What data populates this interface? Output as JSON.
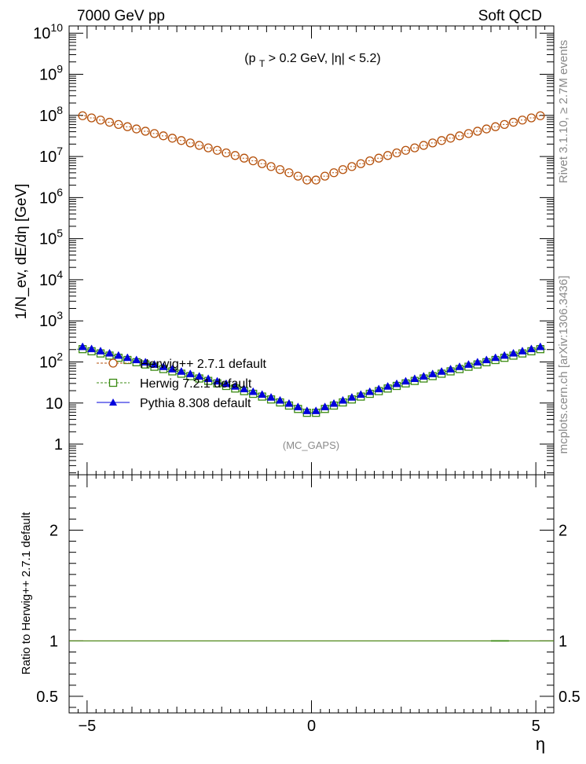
{
  "header": {
    "left": "7000 GeV pp",
    "right": "Soft QCD"
  },
  "cut_label": "(p_T > 0.2 GeV, |η| < 5.2)",
  "analysis_tag": "(MC_GAPS)",
  "side_labels": {
    "rivet": "Rivet 3.1.10, ≥ 2.7M events",
    "mcplots": "mcplots.cern.ch [arXiv:1306.3436]"
  },
  "colors": {
    "herwigpp": "#b5510c",
    "herwig7": "#3a8a12",
    "pythia": "#0000dd",
    "ratio_line": "#3a8a12"
  },
  "chart_data": [
    {
      "type": "scatter",
      "title": "",
      "xlabel": "η",
      "ylabel": "1/N_ev, dE/dη [GeV]",
      "yscale": "log",
      "xlim": [
        -5.4,
        5.4
      ],
      "ylim": [
        0.18,
        15000000000
      ],
      "x_ticks": [
        "−5",
        "0",
        "5"
      ],
      "y_ticks": [
        "1",
        "10",
        "10^2",
        "10^3",
        "10^4",
        "10^5",
        "10^6",
        "10^7",
        "10^8",
        "10^9",
        "10^10"
      ],
      "legend_position": "middle-left",
      "series": [
        {
          "name": "Herwig++ 2.7.1 default",
          "marker": "open-circle",
          "ends": 98000000,
          "center": 2300000
        },
        {
          "name": "Herwig 7.2.1 default",
          "marker": "open-square",
          "ends": 205,
          "center": 5
        },
        {
          "name": "Pythia 8.308 default",
          "marker": "filled-triangle",
          "ends": 235,
          "center": 5.6
        }
      ],
      "x": [
        -5.1,
        -4.9,
        -4.7,
        -4.5,
        -4.3,
        -4.1,
        -3.9,
        -3.7,
        -3.5,
        -3.3,
        -3.1,
        -2.9,
        -2.7,
        -2.5,
        -2.3,
        -2.1,
        -1.9,
        -1.7,
        -1.5,
        -1.3,
        -1.1,
        -0.9,
        -0.7,
        -0.5,
        -0.3,
        -0.1,
        0.1,
        0.3,
        0.5,
        0.7,
        0.9,
        1.1,
        1.3,
        1.5,
        1.7,
        1.9,
        2.1,
        2.3,
        2.5,
        2.7,
        2.9,
        3.1,
        3.3,
        3.5,
        3.7,
        3.9,
        4.1,
        4.3,
        4.5,
        4.7,
        4.9,
        5.1
      ],
      "note": ""
    },
    {
      "type": "line",
      "title": "",
      "xlabel": "η",
      "ylabel": "Ratio to Herwig++ 2.7.1 default",
      "xlim": [
        -5.4,
        5.4
      ],
      "ylim": [
        0.35,
        2.5
      ],
      "x_ticks": [
        "−5",
        "0",
        "5"
      ],
      "y_ticks": [
        "0.5",
        "1",
        "2"
      ],
      "series": [
        {
          "name": "Herwig++ 2.7.1 default",
          "values": [
            1,
            1
          ]
        },
        {
          "name": "Herwig 7.2.1 default",
          "values": [
            1,
            1
          ]
        },
        {
          "name": "Pythia 8.308 default",
          "values": [
            1,
            1
          ]
        }
      ]
    }
  ]
}
